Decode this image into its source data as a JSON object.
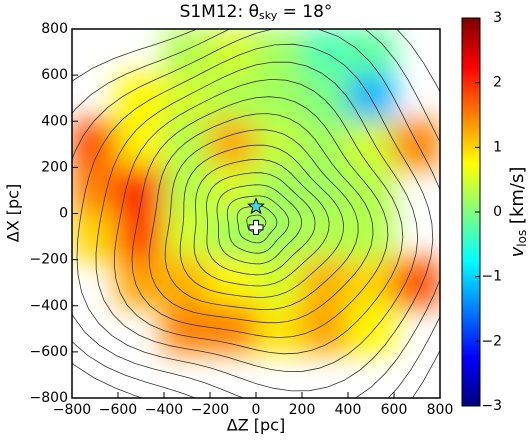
{
  "chart_data": {
    "type": "heatmap",
    "title": {
      "parts": [
        "S1M12:  θ",
        "sky",
        " = 18°"
      ]
    },
    "x_label": "ΔZ [pc]",
    "y_label": "ΔX [pc]",
    "colorbar_label": {
      "parts": [
        "v",
        "los",
        " [km/s]"
      ]
    },
    "colormap": "jet",
    "x": [
      -700,
      -500,
      -300,
      -100,
      100,
      300,
      500,
      700
    ],
    "y": [
      700,
      500,
      300,
      100,
      -100,
      -300,
      -500,
      -700
    ],
    "values": [
      [
        null,
        null,
        0.3,
        0.5,
        0.2,
        -0.3,
        -0.2,
        null
      ],
      [
        null,
        0.8,
        0.5,
        0.3,
        0.2,
        0,
        -1.2,
        null
      ],
      [
        1.8,
        0.8,
        0.3,
        1.3,
        0.4,
        0.2,
        0.5,
        1.5
      ],
      [
        1.5,
        2.2,
        0.3,
        0.5,
        0.2,
        0.2,
        0.3,
        null
      ],
      [
        1.0,
        2.0,
        0.5,
        0.2,
        0.2,
        0.3,
        0.3,
        null
      ],
      [
        null,
        1.3,
        1.2,
        0.8,
        0.5,
        1.2,
        1.0,
        1.8
      ],
      [
        null,
        null,
        1.5,
        1.5,
        0.9,
        1.3,
        0.8,
        null
      ],
      [
        null,
        null,
        null,
        null,
        null,
        null,
        null,
        null
      ]
    ],
    "markers": [
      {
        "x": 0,
        "y": 30,
        "color": "#33ddee"
      },
      {
        "x": 0,
        "y": -60,
        "color": "#ffffff"
      }
    ],
    "xlim": [
      -800,
      800
    ],
    "ylim": [
      -800,
      800
    ],
    "clim": [
      -3,
      3
    ],
    "xticks": [
      {
        "value": -800,
        "label": "−800"
      },
      {
        "value": -600,
        "label": "−600"
      },
      {
        "value": -400,
        "label": "−400"
      },
      {
        "value": -200,
        "label": "−200"
      },
      0,
      200,
      400,
      600,
      800
    ],
    "yticks": [
      {
        "value": -800,
        "label": "−800"
      },
      {
        "value": -600,
        "label": "−600"
      },
      {
        "value": -400,
        "label": "−400"
      },
      {
        "value": -200,
        "label": "−200"
      },
      0,
      200,
      400,
      600,
      800
    ],
    "cticks": [
      {
        "value": -3,
        "label": "−3"
      },
      {
        "value": -2,
        "label": "−2"
      },
      {
        "value": -1,
        "label": "−1"
      },
      0,
      1,
      2,
      3
    ]
  }
}
